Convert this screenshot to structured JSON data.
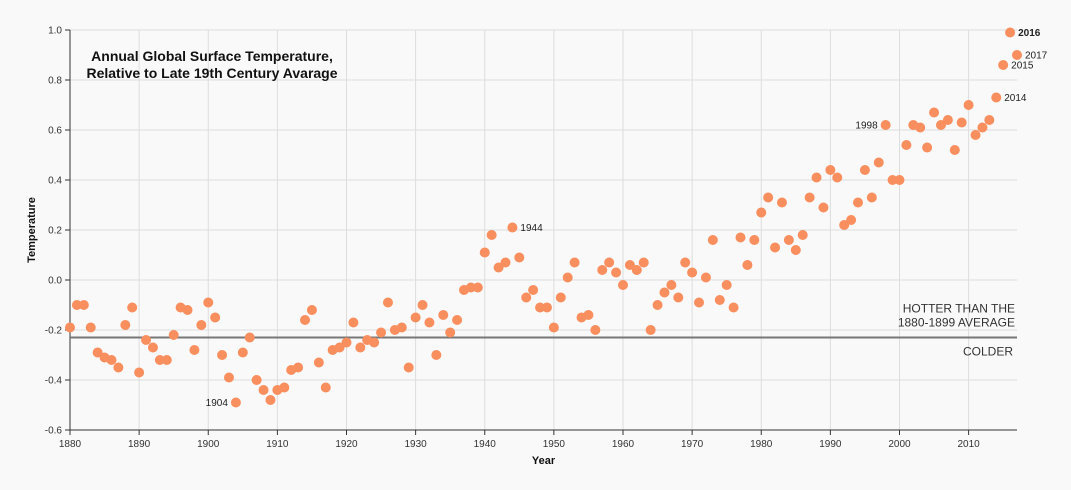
{
  "chart_data": {
    "type": "scatter",
    "title_lines": [
      "Annual Global Surface Temperature,",
      "Relative to Late 19th Century Avarage"
    ],
    "xlabel": "Year",
    "ylabel": "Temperature",
    "xlim": [
      1880,
      2017
    ],
    "ylim": [
      -0.6,
      1.0
    ],
    "xticks": [
      1880,
      1890,
      1900,
      1910,
      1920,
      1930,
      1940,
      1950,
      1960,
      1970,
      1980,
      1990,
      2000,
      2010
    ],
    "yticks": [
      -0.6,
      -0.4,
      -0.2,
      0.0,
      0.2,
      0.4,
      0.6,
      0.8,
      1.0
    ],
    "grid": true,
    "point_color": "#f98e5e",
    "x": [
      1880,
      1881,
      1882,
      1883,
      1884,
      1885,
      1886,
      1887,
      1888,
      1889,
      1890,
      1891,
      1892,
      1893,
      1894,
      1895,
      1896,
      1897,
      1898,
      1899,
      1900,
      1901,
      1902,
      1903,
      1904,
      1905,
      1906,
      1907,
      1908,
      1909,
      1910,
      1911,
      1912,
      1913,
      1914,
      1915,
      1916,
      1917,
      1918,
      1919,
      1920,
      1921,
      1922,
      1923,
      1924,
      1925,
      1926,
      1927,
      1928,
      1929,
      1930,
      1931,
      1932,
      1933,
      1934,
      1935,
      1936,
      1937,
      1938,
      1939,
      1940,
      1941,
      1942,
      1943,
      1944,
      1945,
      1946,
      1947,
      1948,
      1949,
      1950,
      1951,
      1952,
      1953,
      1954,
      1955,
      1956,
      1957,
      1958,
      1959,
      1960,
      1961,
      1962,
      1963,
      1964,
      1965,
      1966,
      1967,
      1968,
      1969,
      1970,
      1971,
      1972,
      1973,
      1974,
      1975,
      1976,
      1977,
      1978,
      1979,
      1980,
      1981,
      1982,
      1983,
      1984,
      1985,
      1986,
      1987,
      1988,
      1989,
      1990,
      1991,
      1992,
      1993,
      1994,
      1995,
      1996,
      1997,
      1998,
      1999,
      2000,
      2001,
      2002,
      2003,
      2004,
      2005,
      2006,
      2007,
      2008,
      2009,
      2010,
      2011,
      2012,
      2013,
      2014,
      2015,
      2016,
      2017
    ],
    "y": [
      -0.19,
      -0.1,
      -0.1,
      -0.19,
      -0.29,
      -0.31,
      -0.32,
      -0.35,
      -0.18,
      -0.11,
      -0.37,
      -0.24,
      -0.27,
      -0.32,
      -0.32,
      -0.22,
      -0.11,
      -0.12,
      -0.28,
      -0.18,
      -0.09,
      -0.15,
      -0.3,
      -0.39,
      -0.49,
      -0.29,
      -0.23,
      -0.4,
      -0.44,
      -0.48,
      -0.44,
      -0.43,
      -0.36,
      -0.35,
      -0.16,
      -0.12,
      -0.33,
      -0.43,
      -0.28,
      -0.27,
      -0.25,
      -0.17,
      -0.27,
      -0.24,
      -0.25,
      -0.21,
      -0.09,
      -0.2,
      -0.19,
      -0.35,
      -0.15,
      -0.1,
      -0.17,
      -0.3,
      -0.14,
      -0.21,
      -0.16,
      -0.04,
      -0.03,
      -0.03,
      0.11,
      0.18,
      0.05,
      0.07,
      0.21,
      0.09,
      -0.07,
      -0.04,
      -0.11,
      -0.11,
      -0.19,
      -0.07,
      0.01,
      0.07,
      -0.15,
      -0.14,
      -0.2,
      0.04,
      0.07,
      0.03,
      -0.02,
      0.06,
      0.04,
      0.07,
      -0.2,
      -0.1,
      -0.05,
      -0.02,
      -0.07,
      0.07,
      0.03,
      -0.09,
      0.01,
      0.16,
      -0.08,
      -0.02,
      -0.11,
      0.17,
      0.06,
      0.16,
      0.27,
      0.33,
      0.13,
      0.31,
      0.16,
      0.12,
      0.18,
      0.33,
      0.41,
      0.29,
      0.44,
      0.41,
      0.22,
      0.24,
      0.31,
      0.44,
      0.33,
      0.47,
      0.62,
      0.4,
      0.4,
      0.54,
      0.62,
      0.61,
      0.53,
      0.67,
      0.62,
      0.64,
      0.52,
      0.63,
      0.7,
      0.58,
      0.61,
      0.64,
      0.73,
      0.86,
      0.99,
      0.9
    ],
    "annotations": [
      {
        "year": 1904,
        "label": "1904",
        "side": "left",
        "bold": false
      },
      {
        "year": 1944,
        "label": "1944",
        "side": "right",
        "bold": false
      },
      {
        "year": 1998,
        "label": "1998",
        "side": "left",
        "bold": false
      },
      {
        "year": 2014,
        "label": "2014",
        "side": "right",
        "bold": false
      },
      {
        "year": 2015,
        "label": "2015",
        "side": "right",
        "bold": false
      },
      {
        "year": 2016,
        "label": "2016",
        "side": "right",
        "bold": true
      },
      {
        "year": 2017,
        "label": "2017",
        "side": "right",
        "bold": false
      }
    ],
    "reference_line": {
      "y": -0.23,
      "color": "#777777",
      "above_label_lines": [
        "HOTTER THAN THE",
        "1880-1899 AVERAGE"
      ],
      "below_label": "COLDER"
    }
  }
}
